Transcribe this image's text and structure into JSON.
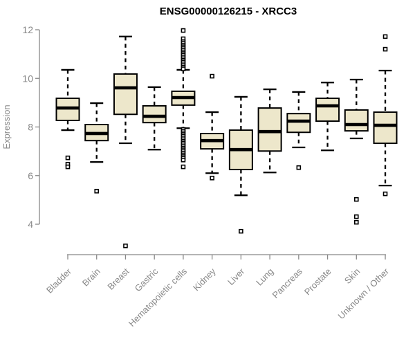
{
  "header": {
    "title": "ENSG00000126215 - XRCC3"
  },
  "chart_data": {
    "type": "boxplot",
    "title": "ENSG00000126215 - XRCC3",
    "xlabel": "",
    "ylabel": "Expression",
    "yticks": [
      4,
      6,
      8,
      10,
      12
    ],
    "ylim": [
      4,
      12
    ],
    "grid": false,
    "legend": "none",
    "colors": {
      "box_fill": "#EDE7CB",
      "box_stroke": "#000000",
      "median": "#000000",
      "whisker": "#000000",
      "outlier_stroke": "#000000",
      "outlier_fill": "#ffffff",
      "axis": "#888888",
      "tick_text": "#888888",
      "title_text": "#000000"
    },
    "categories": [
      "Bladder",
      "Brain",
      "Breast",
      "Gastric",
      "Hematopoietic cells",
      "Kidney",
      "Liver",
      "Lung",
      "Pancreas",
      "Prostate",
      "Skin",
      "Unknown / Other"
    ],
    "boxes": [
      {
        "category": "Bladder",
        "whisker_low": 7.87,
        "q1": 8.27,
        "median": 8.78,
        "q3": 9.18,
        "whisker_high": 10.35,
        "outliers": [
          6.73,
          6.47,
          6.36
        ]
      },
      {
        "category": "Brain",
        "whisker_low": 6.56,
        "q1": 7.44,
        "median": 7.73,
        "q3": 8.1,
        "whisker_high": 8.98,
        "outliers": [
          5.36
        ]
      },
      {
        "category": "Breast",
        "whisker_low": 7.33,
        "q1": 8.52,
        "median": 9.61,
        "q3": 10.18,
        "whisker_high": 11.72,
        "outliers": [
          3.11
        ]
      },
      {
        "category": "Gastric",
        "whisker_low": 7.07,
        "q1": 8.18,
        "median": 8.44,
        "q3": 8.87,
        "whisker_high": 9.64,
        "outliers": []
      },
      {
        "category": "Hematopoietic cells",
        "whisker_low": 7.95,
        "q1": 8.9,
        "median": 9.21,
        "q3": 9.47,
        "whisker_high": 10.35,
        "outliers": [
          11.97,
          11.63,
          11.51,
          11.44,
          11.37,
          11.3,
          11.23,
          11.16,
          11.09,
          11.02,
          10.95,
          10.88,
          10.81,
          10.74,
          10.67,
          10.6,
          10.53,
          10.46,
          10.39,
          7.9,
          7.83,
          7.76,
          7.69,
          7.62,
          7.55,
          7.48,
          7.41,
          7.34,
          7.27,
          7.2,
          7.13,
          7.06,
          6.99,
          6.92,
          6.85,
          6.78,
          6.71,
          6.64,
          6.36
        ]
      },
      {
        "category": "Kidney",
        "whisker_low": 6.1,
        "q1": 7.1,
        "median": 7.44,
        "q3": 7.73,
        "whisker_high": 8.61,
        "outliers": [
          10.09,
          5.9
        ]
      },
      {
        "category": "Liver",
        "whisker_low": 5.19,
        "q1": 6.25,
        "median": 7.07,
        "q3": 7.87,
        "whisker_high": 9.24,
        "outliers": [
          3.71
        ]
      },
      {
        "category": "Lung",
        "whisker_low": 6.13,
        "q1": 7.01,
        "median": 7.81,
        "q3": 8.78,
        "whisker_high": 9.55,
        "outliers": []
      },
      {
        "category": "Pancreas",
        "whisker_low": 7.16,
        "q1": 7.78,
        "median": 8.24,
        "q3": 8.55,
        "whisker_high": 9.44,
        "outliers": [
          6.33
        ]
      },
      {
        "category": "Prostate",
        "whisker_low": 7.04,
        "q1": 8.24,
        "median": 8.87,
        "q3": 9.18,
        "whisker_high": 9.83,
        "outliers": []
      },
      {
        "category": "Skin",
        "whisker_low": 7.53,
        "q1": 7.84,
        "median": 8.1,
        "q3": 8.7,
        "whisker_high": 9.95,
        "outliers": [
          5.02,
          4.31,
          4.08
        ]
      },
      {
        "category": "Unknown / Other",
        "whisker_low": 5.59,
        "q1": 7.33,
        "median": 8.07,
        "q3": 8.61,
        "whisker_high": 10.32,
        "outliers": [
          11.72,
          11.2,
          5.25
        ]
      }
    ]
  }
}
